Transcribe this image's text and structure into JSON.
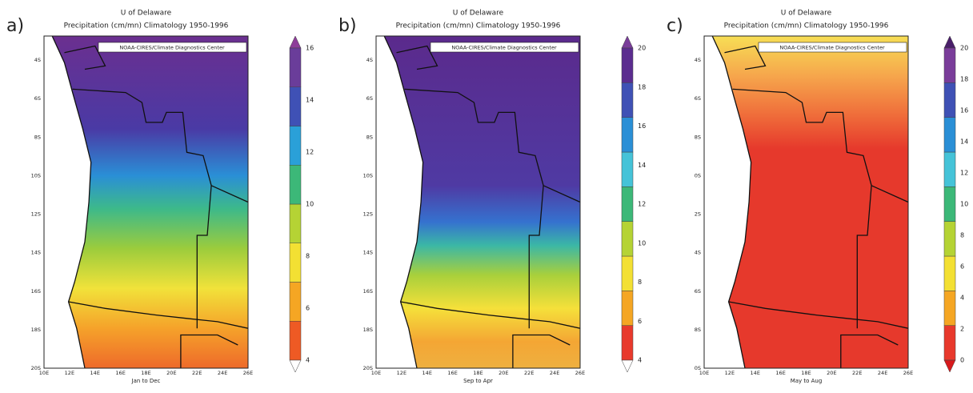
{
  "panels": [
    {
      "label": "a)",
      "title": "U of Delaware",
      "subtitle": "Precipitation (cm/mn) Climatology 1950-1996",
      "credit": "NOAA-CIRES/Climate Diagnostics Center",
      "y_labels": [
        "4S",
        "6S",
        "8S",
        "10S",
        "12S",
        "14S",
        "16S",
        "18S",
        "20S"
      ],
      "x_labels": [
        "10E",
        "12E",
        "14E",
        "16E",
        "18E",
        "20E",
        "22E",
        "24E",
        "26E"
      ],
      "caption": "Jan to Dec",
      "colorbar_labels": [
        4,
        6,
        8,
        10,
        12,
        14,
        16
      ]
    },
    {
      "label": "b)",
      "title": "U of Delaware",
      "subtitle": "Precipitation (cm/mn) Climatology 1950-1996",
      "credit": "NOAA-CIRES/Climate Diagnostics Center",
      "y_labels": [
        "4S",
        "6S",
        "8S",
        "10S",
        "12S",
        "14S",
        "16S",
        "18S",
        "20S"
      ],
      "x_labels": [
        "10E",
        "12E",
        "14E",
        "16E",
        "18E",
        "20E",
        "22E",
        "24E",
        "26E"
      ],
      "caption": "Sep to Apr",
      "colorbar_labels": [
        4,
        6,
        8,
        10,
        12,
        14,
        16,
        18,
        20
      ]
    },
    {
      "label": "c)",
      "title": "U of Delaware",
      "subtitle": "Precipitation (cm/mn) Climatology 1950-1996",
      "credit": "NOAA-CIRES/Climate Diagnostics Center",
      "y_labels": [
        "4S",
        "6S",
        "8S",
        "0S",
        "2S",
        "4S",
        "6S",
        "8S",
        "0S"
      ],
      "x_labels": [
        "10E",
        "12E",
        "14E",
        "16E",
        "18E",
        "20E",
        "22E",
        "24E",
        "26E"
      ],
      "caption": "May to Aug",
      "colorbar_labels": [
        0,
        2,
        4,
        6,
        8,
        10,
        12,
        14,
        16,
        18,
        20
      ]
    }
  ]
}
